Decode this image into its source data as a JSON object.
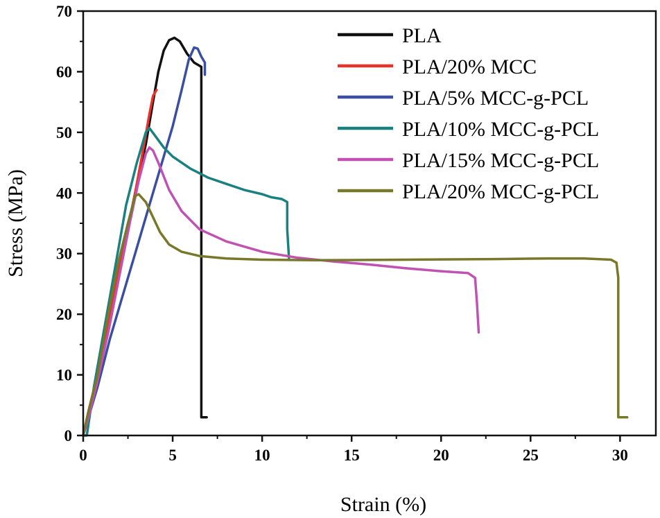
{
  "chart_data": {
    "type": "line",
    "xlabel": "Strain (%)",
    "ylabel": "Stress (MPa)",
    "xlim": [
      0,
      32
    ],
    "ylim": [
      0,
      70
    ],
    "x_ticks": [
      0,
      5,
      10,
      15,
      20,
      25,
      30
    ],
    "y_ticks": [
      0,
      10,
      20,
      30,
      40,
      50,
      60,
      70
    ],
    "grid": false,
    "legend_position": "top-right",
    "series": [
      {
        "name": "PLA",
        "color": "#111111",
        "points": [
          [
            0,
            0
          ],
          [
            0.3,
            4
          ],
          [
            0.8,
            10
          ],
          [
            1.5,
            20
          ],
          [
            2.2,
            30
          ],
          [
            2.9,
            40
          ],
          [
            3.5,
            48
          ],
          [
            3.9,
            55
          ],
          [
            4.2,
            60
          ],
          [
            4.5,
            63.5
          ],
          [
            4.8,
            65.2
          ],
          [
            5.1,
            65.6
          ],
          [
            5.4,
            65
          ],
          [
            5.8,
            63
          ],
          [
            6.2,
            61.5
          ],
          [
            6.6,
            60.8
          ],
          [
            6.6,
            40
          ],
          [
            6.6,
            20
          ],
          [
            6.6,
            3
          ],
          [
            6.9,
            3
          ]
        ]
      },
      {
        "name": "PLA/20% MCC",
        "color": "#e8322a",
        "points": [
          [
            0,
            0
          ],
          [
            0.3,
            4
          ],
          [
            0.8,
            10
          ],
          [
            1.5,
            20
          ],
          [
            2.2,
            30
          ],
          [
            2.9,
            40
          ],
          [
            3.4,
            48
          ],
          [
            3.7,
            53
          ],
          [
            3.9,
            56
          ],
          [
            4.1,
            57
          ]
        ]
      },
      {
        "name": "PLA/5% MCC-g-PCL",
        "color": "#3a4ea2",
        "points": [
          [
            0,
            0
          ],
          [
            0.3,
            3
          ],
          [
            0.8,
            8
          ],
          [
            1.5,
            16
          ],
          [
            2.2,
            23
          ],
          [
            2.9,
            30
          ],
          [
            3.6,
            37
          ],
          [
            4.3,
            44
          ],
          [
            5,
            51
          ],
          [
            5.5,
            57
          ],
          [
            5.9,
            62
          ],
          [
            6.2,
            64
          ],
          [
            6.4,
            63.8
          ],
          [
            6.6,
            62.5
          ],
          [
            6.8,
            61.5
          ],
          [
            6.8,
            59.5
          ]
        ]
      },
      {
        "name": "PLA/10% MCC-g-PCL",
        "color": "#1a8080",
        "points": [
          [
            0,
            0
          ],
          [
            0.2,
            0
          ],
          [
            0.6,
            8
          ],
          [
            1.2,
            18
          ],
          [
            1.8,
            28
          ],
          [
            2.4,
            38
          ],
          [
            3,
            45
          ],
          [
            3.5,
            50
          ],
          [
            3.7,
            50.7
          ],
          [
            4,
            49.5
          ],
          [
            4.5,
            47.5
          ],
          [
            5,
            46
          ],
          [
            6,
            44
          ],
          [
            7,
            42.5
          ],
          [
            8,
            41.5
          ],
          [
            9,
            40.5
          ],
          [
            10,
            39.8
          ],
          [
            10.5,
            39.3
          ],
          [
            11.1,
            39
          ],
          [
            11.4,
            38.5
          ],
          [
            11.4,
            34
          ],
          [
            11.5,
            29.3
          ]
        ]
      },
      {
        "name": "PLA/15% MCC-g-PCL",
        "color": "#c052b2",
        "points": [
          [
            0,
            0
          ],
          [
            0.3,
            3
          ],
          [
            0.8,
            9
          ],
          [
            1.4,
            17
          ],
          [
            2,
            26
          ],
          [
            2.6,
            35
          ],
          [
            3.1,
            42
          ],
          [
            3.5,
            46.5
          ],
          [
            3.7,
            47.5
          ],
          [
            3.9,
            47
          ],
          [
            4.2,
            45
          ],
          [
            4.8,
            40.5
          ],
          [
            5.5,
            37
          ],
          [
            6.5,
            34
          ],
          [
            8,
            32
          ],
          [
            10,
            30.3
          ],
          [
            12,
            29.3
          ],
          [
            14,
            28.7
          ],
          [
            16,
            28.2
          ],
          [
            18,
            27.6
          ],
          [
            20,
            27.1
          ],
          [
            21.5,
            26.8
          ],
          [
            21.9,
            26
          ],
          [
            22,
            22
          ],
          [
            22.1,
            17
          ]
        ]
      },
      {
        "name": "PLA/20% MCC-g-PCL",
        "color": "#77782a",
        "points": [
          [
            0,
            0
          ],
          [
            0.3,
            4
          ],
          [
            0.8,
            10
          ],
          [
            1.4,
            20
          ],
          [
            2,
            29
          ],
          [
            2.5,
            35
          ],
          [
            2.9,
            39.5
          ],
          [
            3.1,
            39.8
          ],
          [
            3.5,
            38.5
          ],
          [
            3.9,
            36
          ],
          [
            4.3,
            33.5
          ],
          [
            4.8,
            31.5
          ],
          [
            5.5,
            30.3
          ],
          [
            6.5,
            29.6
          ],
          [
            8,
            29.2
          ],
          [
            10,
            29
          ],
          [
            13,
            28.9
          ],
          [
            18,
            29
          ],
          [
            23,
            29.1
          ],
          [
            26,
            29.2
          ],
          [
            28,
            29.2
          ],
          [
            29.5,
            29
          ],
          [
            29.8,
            28.5
          ],
          [
            29.9,
            26
          ],
          [
            29.9,
            15
          ],
          [
            29.9,
            3
          ],
          [
            30.4,
            3
          ]
        ]
      }
    ]
  }
}
